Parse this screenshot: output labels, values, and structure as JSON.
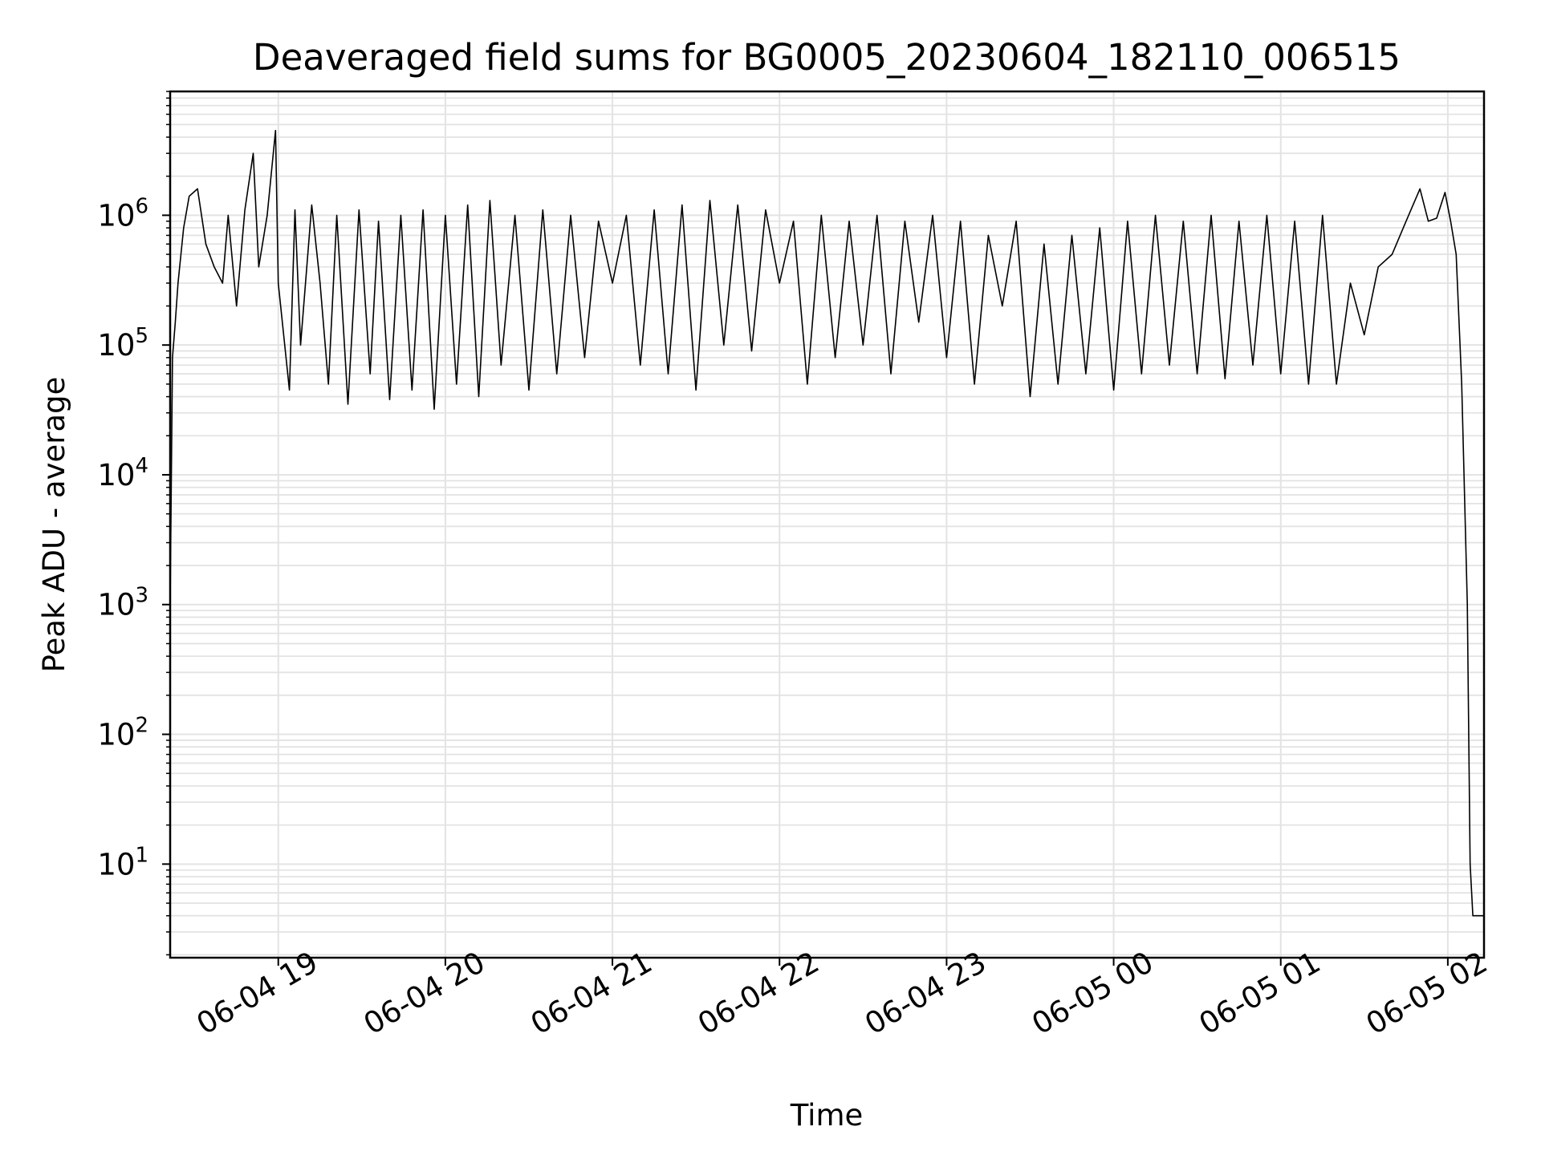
{
  "chart_data": {
    "type": "line",
    "title": "Deaveraged field sums for BG0005_20230604_182110_006515",
    "xlabel": "Time",
    "ylabel": "Peak ADU - average",
    "x_axis": {
      "kind": "datetime",
      "min": "2023-06-04T18:21:10",
      "max": "2023-06-05T02:13:00",
      "ticks": [
        {
          "at": "2023-06-04T19:00:00",
          "label": "06-04 19"
        },
        {
          "at": "2023-06-04T20:00:00",
          "label": "06-04 20"
        },
        {
          "at": "2023-06-04T21:00:00",
          "label": "06-04 21"
        },
        {
          "at": "2023-06-04T22:00:00",
          "label": "06-04 22"
        },
        {
          "at": "2023-06-04T23:00:00",
          "label": "06-04 23"
        },
        {
          "at": "2023-06-05T00:00:00",
          "label": "06-05 00"
        },
        {
          "at": "2023-06-05T01:00:00",
          "label": "06-05 01"
        },
        {
          "at": "2023-06-05T02:00:00",
          "label": "06-05 02"
        }
      ]
    },
    "y_axis": {
      "scale": "log",
      "min": 1.9,
      "max": 9000000,
      "ticks": [
        {
          "value": 10,
          "base": "10",
          "exp": "1"
        },
        {
          "value": 100,
          "base": "10",
          "exp": "2"
        },
        {
          "value": 1000,
          "base": "10",
          "exp": "3"
        },
        {
          "value": 10000,
          "base": "10",
          "exp": "4"
        },
        {
          "value": 100000,
          "base": "10",
          "exp": "5"
        },
        {
          "value": 1000000,
          "base": "10",
          "exp": "6"
        }
      ]
    },
    "grid": true,
    "colors": {
      "line": "#000000",
      "grid": "#e3e3e3",
      "axes": "#000000"
    },
    "series": [
      {
        "x": [
          "2023-06-04T18:21:10",
          "2023-06-04T18:22:00",
          "2023-06-04T18:23:00",
          "2023-06-04T18:24:00",
          "2023-06-04T18:26:00",
          "2023-06-04T18:28:00",
          "2023-06-04T18:31:00",
          "2023-06-04T18:34:00",
          "2023-06-04T18:37:00",
          "2023-06-04T18:40:00",
          "2023-06-04T18:42:00",
          "2023-06-04T18:45:00",
          "2023-06-04T18:48:00",
          "2023-06-04T18:51:00",
          "2023-06-04T18:53:00",
          "2023-06-04T18:56:00",
          "2023-06-04T18:59:00",
          "2023-06-04T19:00:00",
          "2023-06-04T19:04:00",
          "2023-06-04T19:06:00",
          "2023-06-04T19:08:00",
          "2023-06-04T19:12:00",
          "2023-06-04T19:15:00",
          "2023-06-04T19:18:00",
          "2023-06-04T19:21:00",
          "2023-06-04T19:25:00",
          "2023-06-04T19:29:00",
          "2023-06-04T19:33:00",
          "2023-06-04T19:36:00",
          "2023-06-04T19:40:00",
          "2023-06-04T19:44:00",
          "2023-06-04T19:48:00",
          "2023-06-04T19:52:00",
          "2023-06-04T19:56:00",
          "2023-06-04T20:00:00",
          "2023-06-04T20:04:00",
          "2023-06-04T20:08:00",
          "2023-06-04T20:12:00",
          "2023-06-04T20:16:00",
          "2023-06-04T20:20:00",
          "2023-06-04T20:25:00",
          "2023-06-04T20:30:00",
          "2023-06-04T20:35:00",
          "2023-06-04T20:40:00",
          "2023-06-04T20:45:00",
          "2023-06-04T20:50:00",
          "2023-06-04T20:55:00",
          "2023-06-04T21:00:00",
          "2023-06-04T21:05:00",
          "2023-06-04T21:10:00",
          "2023-06-04T21:15:00",
          "2023-06-04T21:20:00",
          "2023-06-04T21:25:00",
          "2023-06-04T21:30:00",
          "2023-06-04T21:35:00",
          "2023-06-04T21:40:00",
          "2023-06-04T21:45:00",
          "2023-06-04T21:50:00",
          "2023-06-04T21:55:00",
          "2023-06-04T22:00:00",
          "2023-06-04T22:05:00",
          "2023-06-04T22:10:00",
          "2023-06-04T22:15:00",
          "2023-06-04T22:20:00",
          "2023-06-04T22:25:00",
          "2023-06-04T22:30:00",
          "2023-06-04T22:35:00",
          "2023-06-04T22:40:00",
          "2023-06-04T22:45:00",
          "2023-06-04T22:50:00",
          "2023-06-04T22:55:00",
          "2023-06-04T23:00:00",
          "2023-06-04T23:05:00",
          "2023-06-04T23:10:00",
          "2023-06-04T23:15:00",
          "2023-06-04T23:20:00",
          "2023-06-04T23:25:00",
          "2023-06-04T23:30:00",
          "2023-06-04T23:35:00",
          "2023-06-04T23:40:00",
          "2023-06-04T23:45:00",
          "2023-06-04T23:50:00",
          "2023-06-04T23:55:00",
          "2023-06-05T00:00:00",
          "2023-06-05T00:05:00",
          "2023-06-05T00:10:00",
          "2023-06-05T00:15:00",
          "2023-06-05T00:20:00",
          "2023-06-05T00:25:00",
          "2023-06-05T00:30:00",
          "2023-06-05T00:35:00",
          "2023-06-05T00:40:00",
          "2023-06-05T00:45:00",
          "2023-06-05T00:50:00",
          "2023-06-05T00:55:00",
          "2023-06-05T01:00:00",
          "2023-06-05T01:05:00",
          "2023-06-05T01:10:00",
          "2023-06-05T01:15:00",
          "2023-06-05T01:20:00",
          "2023-06-05T01:25:00",
          "2023-06-05T01:30:00",
          "2023-06-05T01:35:00",
          "2023-06-05T01:40:00",
          "2023-06-05T01:45:00",
          "2023-06-05T01:50:00",
          "2023-06-05T01:53:00",
          "2023-06-05T01:56:00",
          "2023-06-05T01:59:00",
          "2023-06-05T02:01:00",
          "2023-06-05T02:03:00",
          "2023-06-05T02:05:00",
          "2023-06-05T02:07:00",
          "2023-06-05T02:08:00",
          "2023-06-05T02:09:00",
          "2023-06-05T02:10:00",
          "2023-06-05T02:13:00"
        ],
        "y": [
          1000,
          80000,
          150000,
          300000,
          800000,
          1400000,
          1600000,
          600000,
          400000,
          300000,
          1000000,
          200000,
          1100000,
          3000000,
          400000,
          1000000,
          4500000,
          300000,
          45000,
          1100000,
          100000,
          1200000,
          300000,
          50000,
          1000000,
          35000,
          1100000,
          60000,
          900000,
          38000,
          1000000,
          45000,
          1100000,
          32000,
          1000000,
          50000,
          1200000,
          40000,
          1300000,
          70000,
          1000000,
          45000,
          1100000,
          60000,
          1000000,
          80000,
          900000,
          300000,
          1000000,
          70000,
          1100000,
          60000,
          1200000,
          45000,
          1300000,
          100000,
          1200000,
          90000,
          1100000,
          300000,
          900000,
          50000,
          1000000,
          80000,
          900000,
          100000,
          1000000,
          60000,
          900000,
          150000,
          1000000,
          80000,
          900000,
          50000,
          700000,
          200000,
          900000,
          40000,
          600000,
          50000,
          700000,
          60000,
          800000,
          45000,
          900000,
          60000,
          1000000,
          70000,
          900000,
          60000,
          1000000,
          55000,
          900000,
          70000,
          1000000,
          60000,
          900000,
          50000,
          1000000,
          50000,
          300000,
          120000,
          400000,
          500000,
          900000,
          1600000,
          900000,
          950000,
          1500000,
          900000,
          500000,
          50000,
          1000,
          10,
          4,
          4,
          4
        ]
      }
    ]
  }
}
